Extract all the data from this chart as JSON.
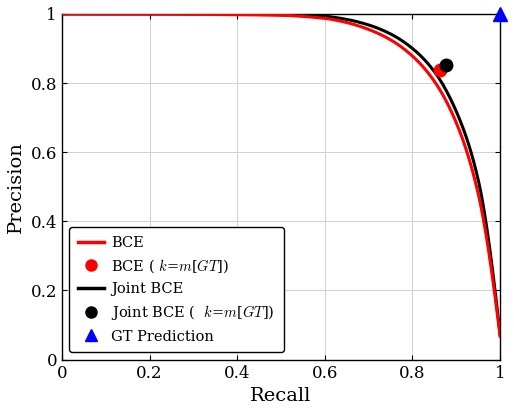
{
  "title": "",
  "xlabel": "Recall",
  "ylabel": "Precision",
  "xlim": [
    0,
    1.05
  ],
  "ylim": [
    0,
    1.05
  ],
  "xticks": [
    0,
    0.2,
    0.4,
    0.6,
    0.8,
    1
  ],
  "yticks": [
    0,
    0.2,
    0.4,
    0.6,
    0.8,
    1
  ],
  "bce_color": "#ff0000",
  "joint_bce_color": "#000000",
  "gt_color": "#0000ff",
  "bce_point": [
    0.862,
    0.837
  ],
  "joint_bce_point": [
    0.876,
    0.853
  ],
  "gt_point": [
    1.0,
    1.0
  ],
  "figsize": [
    5.14,
    4.12
  ],
  "dpi": 100,
  "linewidth": 2.2,
  "background_color": "#ffffff",
  "bce_curve_recall": [
    0.0,
    0.1,
    0.2,
    0.3,
    0.4,
    0.5,
    0.6,
    0.65,
    0.7,
    0.75,
    0.8,
    0.85,
    0.9,
    0.95,
    1.0
  ],
  "bce_curve_precision": [
    1.0,
    1.0,
    1.0,
    0.999,
    0.998,
    0.996,
    0.987,
    0.975,
    0.955,
    0.925,
    0.878,
    0.805,
    0.685,
    0.48,
    0.068
  ],
  "joint_bce_curve_recall": [
    0.0,
    0.1,
    0.2,
    0.3,
    0.4,
    0.5,
    0.6,
    0.65,
    0.7,
    0.75,
    0.8,
    0.85,
    0.9,
    0.95,
    1.0
  ],
  "joint_bce_curve_precision": [
    1.0,
    1.0,
    1.0,
    1.0,
    0.999,
    0.998,
    0.993,
    0.984,
    0.968,
    0.942,
    0.9,
    0.833,
    0.718,
    0.52,
    0.072
  ]
}
